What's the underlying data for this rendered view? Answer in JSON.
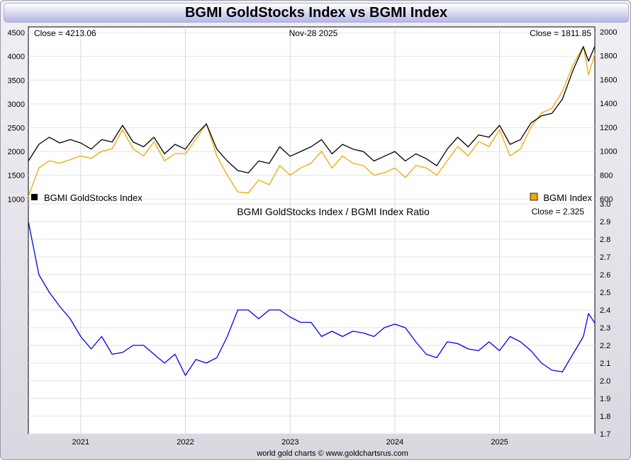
{
  "title": "BGMI GoldStocks Index vs BGMI Index",
  "footer": "world gold charts © www.goldchartsrus.com",
  "chart_data": [
    {
      "type": "line",
      "title": "BGMI GoldStocks Index vs BGMI Index",
      "date_label": "Nov-28  2025",
      "left_close_label": "Close = 4213.06",
      "right_close_label": "Close = 1811.85",
      "xlim": [
        2020.5,
        2025.91
      ],
      "x_ticks": [
        2021,
        2022,
        2023,
        2024,
        2025
      ],
      "x_tick_labels": [
        "2021",
        "2022",
        "2023",
        "2024",
        "2025"
      ],
      "left_axis": {
        "label": "BGMI GoldStocks Index",
        "ylim": [
          900,
          4620
        ],
        "ticks": [
          1000,
          1500,
          2000,
          2500,
          3000,
          3500,
          4000,
          4500
        ]
      },
      "right_axis": {
        "label": "BGMI Index",
        "ylim": [
          560,
          2040
        ],
        "ticks": [
          600,
          800,
          1000,
          1200,
          1400,
          1600,
          1800,
          2000
        ]
      },
      "series": [
        {
          "name": "BGMI GoldStocks Index",
          "axis": "left",
          "color": "#000000",
          "x": [
            2020.5,
            2020.6,
            2020.7,
            2020.8,
            2020.9,
            2021.0,
            2021.1,
            2021.2,
            2021.3,
            2021.4,
            2021.5,
            2021.6,
            2021.7,
            2021.8,
            2021.9,
            2022.0,
            2022.1,
            2022.2,
            2022.3,
            2022.4,
            2022.5,
            2022.6,
            2022.7,
            2022.8,
            2022.9,
            2023.0,
            2023.1,
            2023.2,
            2023.3,
            2023.4,
            2023.5,
            2023.6,
            2023.7,
            2023.8,
            2023.9,
            2024.0,
            2024.1,
            2024.2,
            2024.3,
            2024.4,
            2024.5,
            2024.6,
            2024.7,
            2024.8,
            2024.9,
            2025.0,
            2025.1,
            2025.2,
            2025.3,
            2025.4,
            2025.5,
            2025.6,
            2025.7,
            2025.75,
            2025.8,
            2025.85,
            2025.91
          ],
          "values": [
            1800,
            2150,
            2300,
            2180,
            2250,
            2180,
            2050,
            2250,
            2200,
            2550,
            2200,
            2100,
            2300,
            1950,
            2150,
            2050,
            2350,
            2580,
            2050,
            1800,
            1600,
            1550,
            1800,
            1750,
            2100,
            1900,
            2000,
            2100,
            2250,
            1950,
            2150,
            2050,
            2000,
            1800,
            1900,
            2000,
            1800,
            1950,
            1850,
            1700,
            2050,
            2300,
            2100,
            2350,
            2300,
            2550,
            2150,
            2250,
            2600,
            2750,
            2800,
            3100,
            3700,
            3950,
            4200,
            3900,
            4213
          ]
        },
        {
          "name": "BGMI Index",
          "axis": "right",
          "color": "#f0a800",
          "x": [
            2020.5,
            2020.6,
            2020.7,
            2020.8,
            2020.9,
            2021.0,
            2021.1,
            2021.2,
            2021.3,
            2021.4,
            2021.5,
            2021.6,
            2021.7,
            2021.8,
            2021.9,
            2022.0,
            2022.1,
            2022.2,
            2022.3,
            2022.4,
            2022.5,
            2022.6,
            2022.7,
            2022.8,
            2022.9,
            2023.0,
            2023.1,
            2023.2,
            2023.3,
            2023.4,
            2023.5,
            2023.6,
            2023.7,
            2023.8,
            2023.9,
            2024.0,
            2024.1,
            2024.2,
            2024.3,
            2024.4,
            2024.5,
            2024.6,
            2024.7,
            2024.8,
            2024.9,
            2025.0,
            2025.1,
            2025.2,
            2025.3,
            2025.4,
            2025.5,
            2025.6,
            2025.7,
            2025.75,
            2025.8,
            2025.85,
            2025.91
          ],
          "values": [
            620,
            860,
            920,
            900,
            930,
            960,
            940,
            1000,
            1020,
            1180,
            1020,
            960,
            1080,
            920,
            980,
            980,
            1100,
            1230,
            960,
            800,
            660,
            650,
            760,
            720,
            880,
            800,
            860,
            900,
            1000,
            860,
            960,
            900,
            880,
            800,
            820,
            860,
            780,
            880,
            860,
            800,
            920,
            1040,
            960,
            1080,
            1040,
            1180,
            960,
            1020,
            1200,
            1320,
            1360,
            1500,
            1720,
            1800,
            1880,
            1640,
            1812
          ]
        }
      ]
    },
    {
      "type": "line",
      "title": "BGMI GoldStocks Index  /  BGMI Index Ratio",
      "close_label": "Close = 2.325",
      "xlim": [
        2020.5,
        2025.91
      ],
      "x_ticks": [
        2021,
        2022,
        2023,
        2024,
        2025
      ],
      "x_tick_labels": [
        "2021",
        "2022",
        "2023",
        "2024",
        "2025"
      ],
      "right_axis": {
        "ylim": [
          1.7,
          3.0
        ],
        "ticks": [
          1.7,
          1.8,
          1.9,
          2.0,
          2.1,
          2.2,
          2.3,
          2.4,
          2.5,
          2.6,
          2.7,
          2.8,
          2.9,
          3.0
        ],
        "tick_labels": [
          "1.7",
          "1.8",
          "1.9",
          "2.0",
          "2.1",
          "2.2",
          "2.3",
          "2.4",
          "2.5",
          "2.6",
          "2.7",
          "2.8",
          "2.9",
          "3.0"
        ]
      },
      "series": [
        {
          "name": "BGMI GoldStocks Index / BGMI Index Ratio",
          "color": "#0000ee",
          "x": [
            2020.5,
            2020.6,
            2020.7,
            2020.8,
            2020.9,
            2021.0,
            2021.1,
            2021.2,
            2021.3,
            2021.4,
            2021.5,
            2021.6,
            2021.7,
            2021.8,
            2021.9,
            2022.0,
            2022.1,
            2022.2,
            2022.3,
            2022.4,
            2022.5,
            2022.6,
            2022.7,
            2022.8,
            2022.9,
            2023.0,
            2023.1,
            2023.2,
            2023.3,
            2023.4,
            2023.5,
            2023.6,
            2023.7,
            2023.8,
            2023.9,
            2024.0,
            2024.1,
            2024.2,
            2024.3,
            2024.4,
            2024.5,
            2024.6,
            2024.7,
            2024.8,
            2024.9,
            2025.0,
            2025.1,
            2025.2,
            2025.3,
            2025.4,
            2025.5,
            2025.6,
            2025.7,
            2025.75,
            2025.8,
            2025.85,
            2025.91
          ],
          "values": [
            2.9,
            2.6,
            2.5,
            2.42,
            2.35,
            2.25,
            2.18,
            2.25,
            2.15,
            2.16,
            2.2,
            2.2,
            2.15,
            2.1,
            2.15,
            2.03,
            2.12,
            2.1,
            2.13,
            2.25,
            2.4,
            2.4,
            2.35,
            2.4,
            2.4,
            2.36,
            2.33,
            2.33,
            2.25,
            2.28,
            2.25,
            2.28,
            2.27,
            2.25,
            2.3,
            2.32,
            2.3,
            2.22,
            2.15,
            2.13,
            2.22,
            2.21,
            2.18,
            2.17,
            2.22,
            2.17,
            2.25,
            2.22,
            2.17,
            2.1,
            2.06,
            2.05,
            2.15,
            2.2,
            2.25,
            2.38,
            2.325
          ]
        }
      ]
    }
  ]
}
